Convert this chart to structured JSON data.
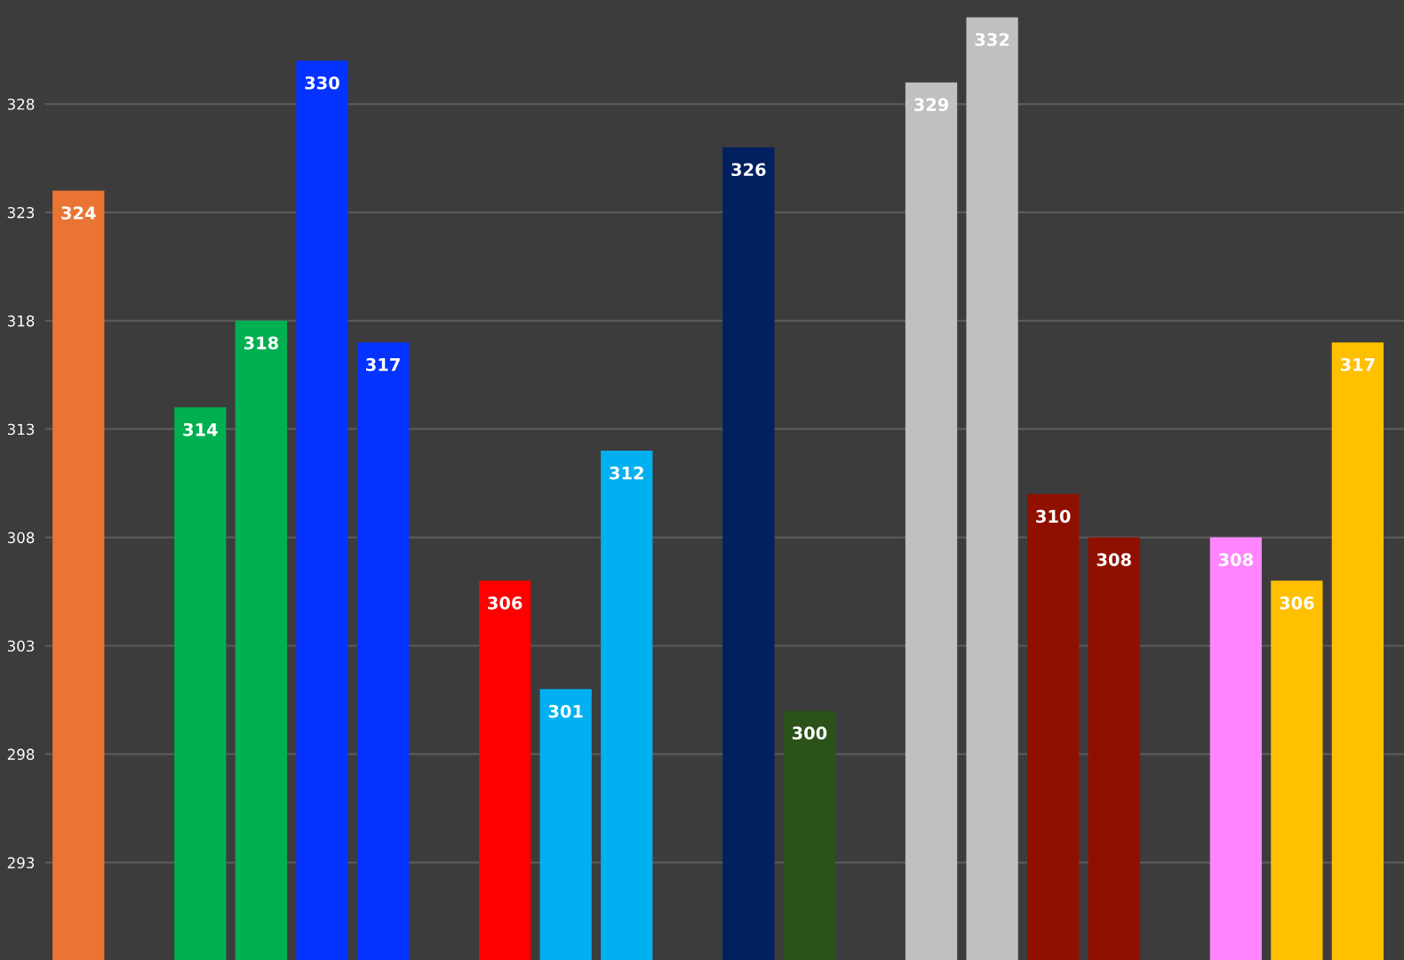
{
  "chart_data": {
    "type": "bar",
    "categories": [
      null,
      null,
      null,
      null,
      null,
      null,
      null,
      null,
      null,
      null,
      null,
      null,
      null,
      null,
      null,
      null,
      null,
      null,
      null,
      null,
      null,
      null
    ],
    "values": [
      324,
      null,
      314,
      318,
      330,
      317,
      null,
      306,
      301,
      312,
      null,
      326,
      300,
      null,
      329,
      332,
      310,
      308,
      null,
      308,
      306,
      317
    ],
    "colors": [
      "#ea7434",
      "#000000",
      "#00b050",
      "#00b050",
      "#0433ff",
      "#0433ff",
      "#000000",
      "#ff0000",
      "#00b0f0",
      "#00b0f0",
      "#000000",
      "#002060",
      "#2b5219",
      "#000000",
      "#c0c0c0",
      "#c0c0c0",
      "#901000",
      "#901000",
      "#000000",
      "#ff86ff",
      "#ffc000",
      "#ffc000"
    ],
    "ylim": [
      288.5,
      332.8
    ],
    "yticks": [
      293,
      298,
      303,
      308,
      313,
      318,
      323,
      328
    ],
    "grid": "y",
    "data_labels": true
  }
}
